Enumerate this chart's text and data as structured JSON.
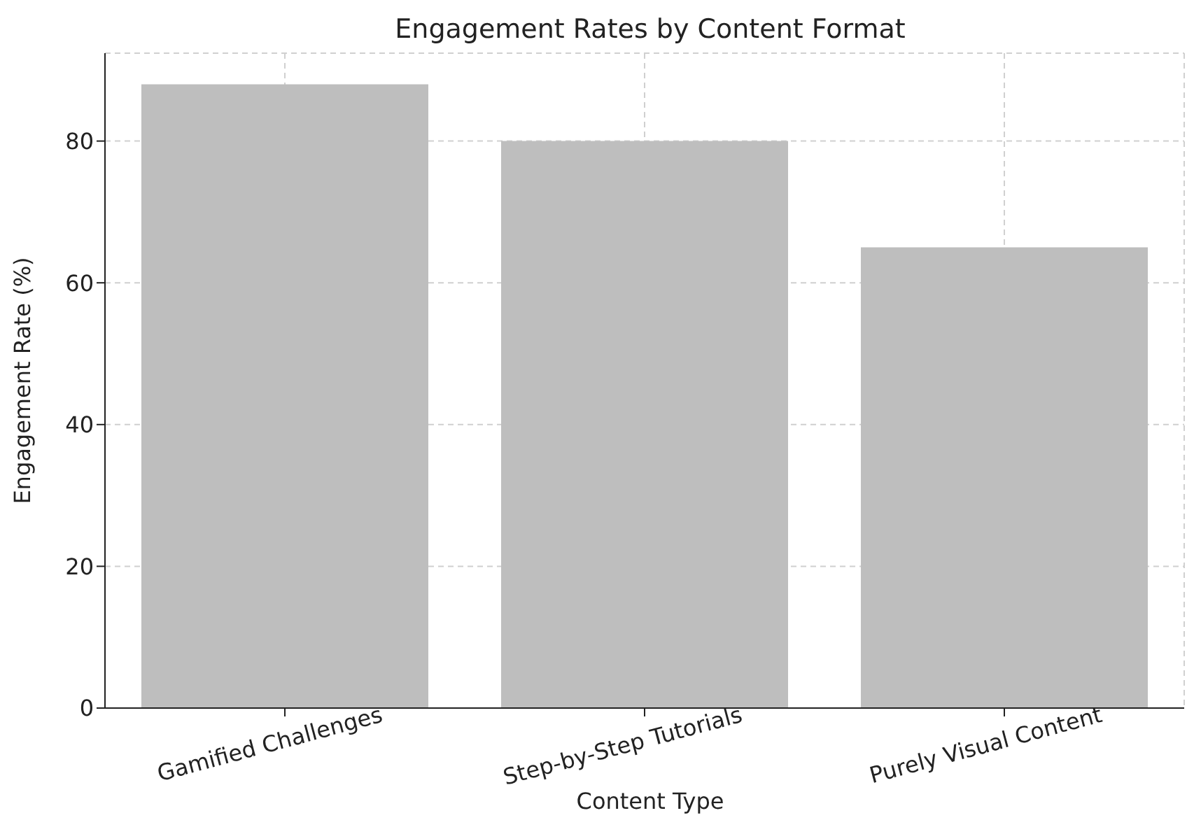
{
  "chart_data": {
    "type": "bar",
    "title": "Engagement Rates by Content Format",
    "xlabel": "Content Type",
    "ylabel": "Engagement Rate (%)",
    "categories": [
      "Gamified Challenges",
      "Step-by-Step Tutorials",
      "Purely Visual Content"
    ],
    "values": [
      88,
      80,
      65
    ],
    "color": "#bebebe",
    "ylim": [
      0,
      92.4
    ],
    "yticks": [
      0,
      20,
      40,
      60,
      80
    ],
    "grid": true
  }
}
